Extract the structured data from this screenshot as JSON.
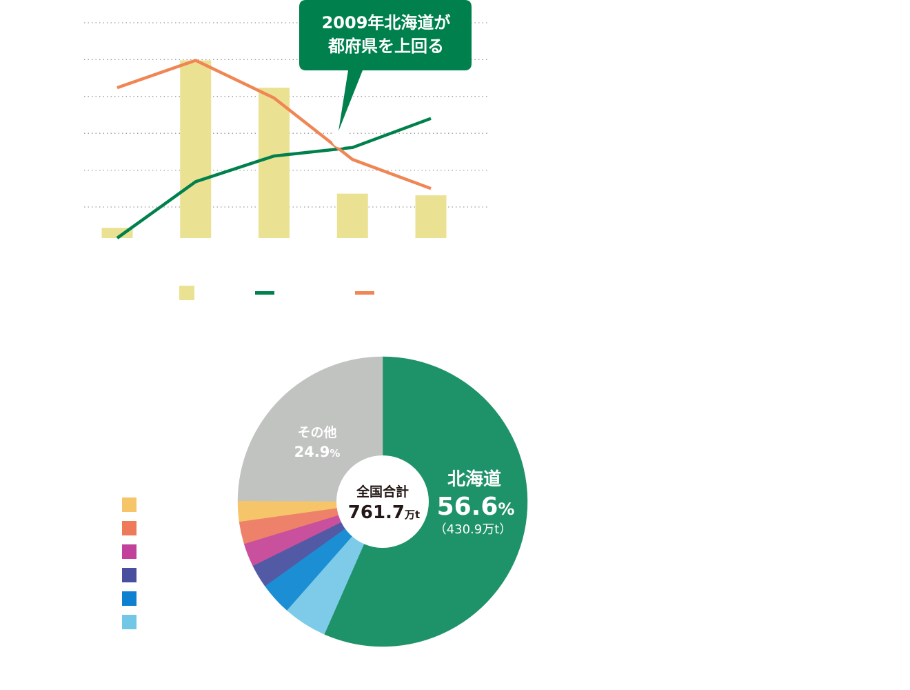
{
  "chart_data": [
    {
      "type": "bar",
      "categories": [
        "",
        "",
        "",
        "",
        ""
      ],
      "ylim": [
        0,
        6.3
      ],
      "grid": true,
      "colors": {
        "bar": "#ebe192",
        "green_line": "#00804d",
        "orange_line": "#ef8653",
        "callout": "#00804d",
        "grid": "#9a9a9a"
      },
      "series": [
        {
          "type": "bar",
          "values": [
            0.3,
            5.2,
            4.4,
            1.3,
            1.25
          ]
        },
        {
          "type": "line",
          "values": [
            0.0,
            1.65,
            2.4,
            2.65,
            3.5
          ]
        },
        {
          "type": "line",
          "values": [
            4.4,
            5.2,
            4.1,
            2.3,
            1.45
          ]
        }
      ],
      "annotations": [
        {
          "text": [
            "2009年北海道が",
            "都府県を上回る"
          ]
        }
      ]
    },
    {
      "type": "pie",
      "center_label": {
        "title": "全国合計",
        "value": "761.7",
        "unit": "万t"
      },
      "slices": [
        {
          "label": "北海道",
          "percent": 56.6,
          "value_text": "56.6",
          "suffix": "%",
          "sub": "（430.9万t）",
          "color": "#1e9268"
        },
        {
          "label": "",
          "percent": 4.9,
          "color": "#7ecbe9"
        },
        {
          "label": "",
          "percent": 3.6,
          "color": "#1c8ed4"
        },
        {
          "label": "",
          "percent": 2.6,
          "color": "#525aa5"
        },
        {
          "label": "",
          "percent": 2.6,
          "color": "#c9509c"
        },
        {
          "label": "",
          "percent": 2.5,
          "color": "#ee816a"
        },
        {
          "label": "",
          "percent": 2.3,
          "color": "#f6c56a"
        },
        {
          "label": "その他",
          "percent": 24.9,
          "value_text": "24.9",
          "suffix": "%",
          "color": "#c1c3c1"
        }
      ],
      "legend": {
        "placement": "left",
        "colors": [
          "#f6c56a",
          "#ee7a5a",
          "#c2419a",
          "#4a4e9e",
          "#0e80d0",
          "#72c6e6"
        ]
      }
    }
  ]
}
